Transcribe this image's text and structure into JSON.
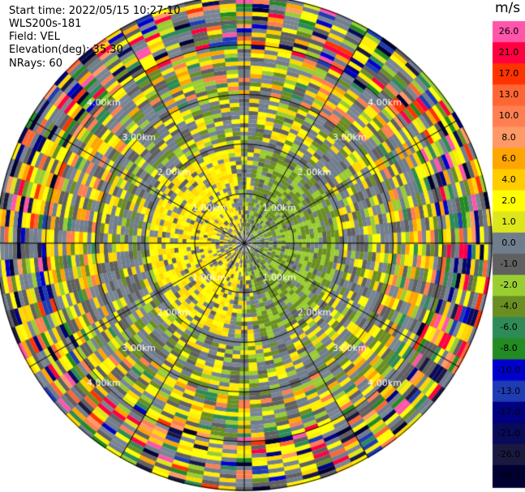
{
  "header": {
    "start_time": "Start time: 2022/05/15 10:27:10",
    "instrument": "WLS200s-181",
    "field": "Field: VEL",
    "elevation": "Elevation(deg): 35.30",
    "nrays": "NRays: 60"
  },
  "colorbar": {
    "title": "m/s",
    "labels": [
      "26.0",
      "21.0",
      "17.0",
      "13.0",
      "10.0",
      "8.0",
      "6.0",
      "4.0",
      "2.0",
      "1.0",
      "0.0",
      "-1.0",
      "-2.0",
      "-4.0",
      "-6.0",
      "-8.0",
      "-10.0",
      "-13.0",
      "-17.0",
      "-21.0",
      "-26.0",
      "-30.0"
    ],
    "colors": [
      "#ff55aa",
      "#ff0040",
      "#ff3300",
      "#ff6633",
      "#ff7f50",
      "#ff9966",
      "#ffa500",
      "#ffcc00",
      "#ffff00",
      "#dde61a",
      "#707d8c",
      "#606060",
      "#9acd32",
      "#6b8e23",
      "#2e8b57",
      "#228b22",
      "#0000cd",
      "#1e3cb4",
      "#000080",
      "#0a0a5a",
      "#1a1a40",
      "#000033"
    ]
  },
  "chart_data": {
    "type": "heatmap",
    "projection": "polar PPI",
    "field": "VEL",
    "units": "m/s",
    "nrays": 60,
    "range_ring_labels": [
      "1.00km",
      "2.00km",
      "3.00km",
      "4.00km"
    ],
    "range_rings_km": [
      1,
      2,
      3,
      4
    ],
    "max_range_km": 5,
    "spoke_angles_deg": [
      0,
      30,
      60,
      90,
      120,
      150,
      180,
      210,
      240,
      270,
      300,
      330
    ],
    "color_scale": {
      "min": -30.0,
      "max": 26.0
    },
    "pattern_description_values": {
      "near_field_0_1km": "mixed -1.0 to 0.0",
      "west_1_2km": "2.0 to 4.0 (yellow, approaching)",
      "east_1_2km": "-2.0 to -4.0 (green, receding)",
      "ring_2_3km": "0.0 to 2.0 mixed",
      "outer_3_5km": "noisy, full color range"
    }
  }
}
